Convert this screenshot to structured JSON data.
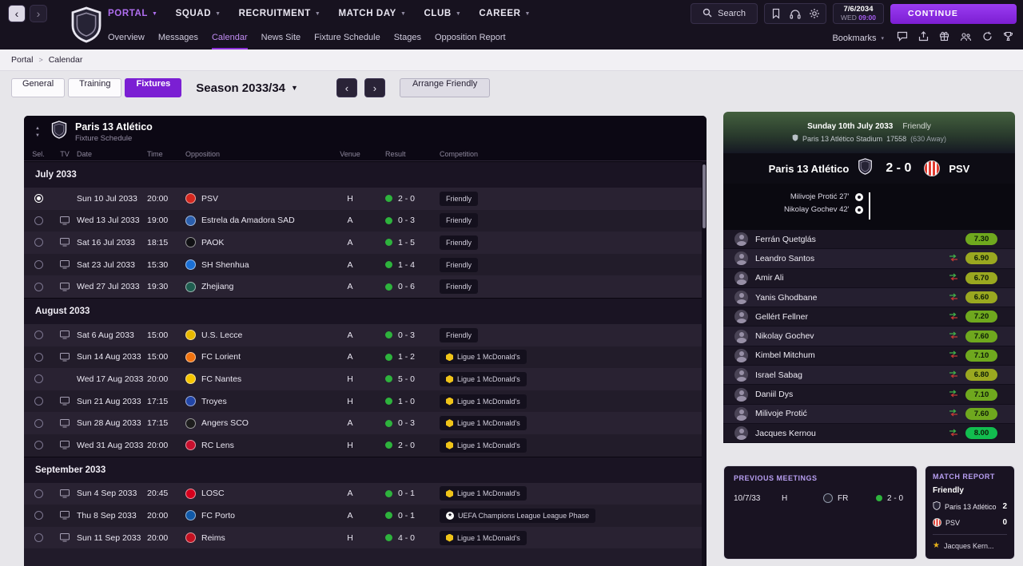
{
  "top_nav": {
    "menus": [
      {
        "label": "PORTAL",
        "active": true
      },
      {
        "label": "SQUAD",
        "active": false
      },
      {
        "label": "RECRUITMENT",
        "active": false
      },
      {
        "label": "MATCH DAY",
        "active": false
      },
      {
        "label": "CLUB",
        "active": false
      },
      {
        "label": "CAREER",
        "active": false
      }
    ],
    "search_label": "Search",
    "date": "7/6/2034",
    "weekday": "WED",
    "time": "09:00",
    "continue_label": "CONTINUE"
  },
  "sub_nav": {
    "items": [
      {
        "label": "Overview",
        "active": false
      },
      {
        "label": "Messages",
        "active": false
      },
      {
        "label": "Calendar",
        "active": true
      },
      {
        "label": "News Site",
        "active": false
      },
      {
        "label": "Fixture Schedule",
        "active": false
      },
      {
        "label": "Stages",
        "active": false
      },
      {
        "label": "Opposition Report",
        "active": false
      }
    ],
    "bookmarks_label": "Bookmarks"
  },
  "breadcrumb": {
    "home": "Portal",
    "separator": ">",
    "current": "Calendar"
  },
  "toolbar": {
    "tabs": [
      {
        "label": "General",
        "active": false
      },
      {
        "label": "Training",
        "active": false
      },
      {
        "label": "Fixtures",
        "active": true
      }
    ],
    "season_label": "Season 2033/34",
    "arrange_friendly_label": "Arrange Friendly"
  },
  "fixture_table": {
    "club_name": "Paris 13 Atlético",
    "subtitle": "Fixture Schedule",
    "columns": [
      "Sel.",
      "TV",
      "Date",
      "Time",
      "Opposition",
      "Venue",
      "Result",
      "Competition"
    ],
    "groups": [
      {
        "month": "July 2033",
        "rows": [
          {
            "sel": true,
            "tv": false,
            "date": "Sun 10 Jul 2033",
            "time": "20:00",
            "opposition": "PSV",
            "badge": "#d5281f",
            "venue": "H",
            "result": "2 - 0",
            "competition": "Friendly",
            "comp_icon": "none"
          },
          {
            "sel": false,
            "tv": true,
            "date": "Wed 13 Jul 2033",
            "time": "19:00",
            "opposition": "Estrela da Amadora SAD",
            "badge": "#2b5fad",
            "venue": "A",
            "result": "0 - 3",
            "competition": "Friendly",
            "comp_icon": "none"
          },
          {
            "sel": false,
            "tv": true,
            "date": "Sat 16 Jul 2033",
            "time": "18:15",
            "opposition": "PAOK",
            "badge": "#101013",
            "venue": "A",
            "result": "1 - 5",
            "competition": "Friendly",
            "comp_icon": "none"
          },
          {
            "sel": false,
            "tv": true,
            "date": "Sat 23 Jul 2033",
            "time": "15:30",
            "opposition": "SH Shenhua",
            "badge": "#1a6fd4",
            "venue": "A",
            "result": "1 - 4",
            "competition": "Friendly",
            "comp_icon": "none"
          },
          {
            "sel": false,
            "tv": true,
            "date": "Wed 27 Jul 2033",
            "time": "19:30",
            "opposition": "Zhejiang",
            "badge": "#1f5e50",
            "venue": "A",
            "result": "0 - 6",
            "competition": "Friendly",
            "comp_icon": "none"
          }
        ]
      },
      {
        "month": "August 2033",
        "rows": [
          {
            "sel": false,
            "tv": true,
            "date": "Sat 6 Aug 2033",
            "time": "15:00",
            "opposition": "U.S. Lecce",
            "badge": "#e8b800",
            "venue": "A",
            "result": "0 - 3",
            "competition": "Friendly",
            "comp_icon": "none"
          },
          {
            "sel": false,
            "tv": true,
            "date": "Sun 14 Aug 2033",
            "time": "15:00",
            "opposition": "FC Lorient",
            "badge": "#f1730f",
            "venue": "A",
            "result": "1 - 2",
            "competition": "Ligue 1 McDonald's",
            "comp_icon": "ligue1"
          },
          {
            "sel": false,
            "tv": false,
            "date": "Wed 17 Aug 2033",
            "time": "20:00",
            "opposition": "FC Nantes",
            "badge": "#f7c500",
            "venue": "H",
            "result": "5 - 0",
            "competition": "Ligue 1 McDonald's",
            "comp_icon": "ligue1"
          },
          {
            "sel": false,
            "tv": true,
            "date": "Sun 21 Aug 2033",
            "time": "17:15",
            "opposition": "Troyes",
            "badge": "#2246a8",
            "venue": "H",
            "result": "1 - 0",
            "competition": "Ligue 1 McDonald's",
            "comp_icon": "ligue1"
          },
          {
            "sel": false,
            "tv": true,
            "date": "Sun 28 Aug 2033",
            "time": "17:15",
            "opposition": "Angers SCO",
            "badge": "#1d1d1d",
            "venue": "A",
            "result": "0 - 3",
            "competition": "Ligue 1 McDonald's",
            "comp_icon": "ligue1"
          },
          {
            "sel": false,
            "tv": true,
            "date": "Wed 31 Aug 2033",
            "time": "20:00",
            "opposition": "RC Lens",
            "badge": "#c8102e",
            "venue": "H",
            "result": "2 - 0",
            "competition": "Ligue 1 McDonald's",
            "comp_icon": "ligue1"
          }
        ]
      },
      {
        "month": "September 2033",
        "rows": [
          {
            "sel": false,
            "tv": true,
            "date": "Sun 4 Sep 2033",
            "time": "20:45",
            "opposition": "LOSC",
            "badge": "#d6001c",
            "venue": "A",
            "result": "0 - 1",
            "competition": "Ligue 1 McDonald's",
            "comp_icon": "ligue1"
          },
          {
            "sel": false,
            "tv": true,
            "date": "Thu 8 Sep 2033",
            "time": "20:00",
            "opposition": "FC Porto",
            "badge": "#1059a8",
            "venue": "A",
            "result": "0 - 1",
            "competition": "UEFA Champions League League Phase",
            "comp_icon": "ucl"
          },
          {
            "sel": false,
            "tv": true,
            "date": "Sun 11 Sep 2033",
            "time": "20:00",
            "opposition": "Reims",
            "badge": "#c31121",
            "venue": "H",
            "result": "4 - 0",
            "competition": "Ligue 1 McDonald's",
            "comp_icon": "ligue1"
          }
        ]
      }
    ]
  },
  "match_panel": {
    "date_line": "Sunday 10th July 2033",
    "competition": "Friendly",
    "stadium": "Paris 13 Atlético Stadium",
    "attendance": "17558",
    "away_attendance": "(630 Away)",
    "home_team": "Paris 13 Atlético",
    "score": "2 - 0",
    "away_team": "PSV",
    "scorers": [
      {
        "name": "Milivoje Protić",
        "minute": "27'"
      },
      {
        "name": "Nikolay Gochev",
        "minute": "42'"
      }
    ],
    "ratings": [
      {
        "name": "Ferrán Quetglás",
        "rating": "7.30",
        "color": "#6fa81e",
        "subbed": false
      },
      {
        "name": "Leandro Santos",
        "rating": "6.90",
        "color": "#9aa820",
        "subbed": true
      },
      {
        "name": "Amir Ali",
        "rating": "6.70",
        "color": "#9aa820",
        "subbed": true
      },
      {
        "name": "Yanis Ghodbane",
        "rating": "6.60",
        "color": "#9aa820",
        "subbed": true
      },
      {
        "name": "Gellért Fellner",
        "rating": "7.20",
        "color": "#6fa81e",
        "subbed": true
      },
      {
        "name": "Nikolay Gochev",
        "rating": "7.60",
        "color": "#6fa81e",
        "subbed": true
      },
      {
        "name": "Kimbel Mitchum",
        "rating": "7.10",
        "color": "#6fa81e",
        "subbed": true
      },
      {
        "name": "Israel Sabag",
        "rating": "6.80",
        "color": "#9aa820",
        "subbed": true
      },
      {
        "name": "Daniil Dys",
        "rating": "7.10",
        "color": "#6fa81e",
        "subbed": true
      },
      {
        "name": "Milivoje Protić",
        "rating": "7.60",
        "color": "#6fa81e",
        "subbed": true
      },
      {
        "name": "Jacques Kernou",
        "rating": "8.00",
        "color": "#12bd4f",
        "subbed": true
      }
    ]
  },
  "previous_meetings": {
    "title": "PREVIOUS MEETINGS",
    "rows": [
      {
        "date": "10/7/33",
        "venue": "H",
        "competition": "FR",
        "result": "2 - 0"
      }
    ]
  },
  "match_report": {
    "title": "MATCH REPORT",
    "competition": "Friendly",
    "home_team": "Paris 13 Atlético",
    "home_score": "2",
    "away_team": "PSV",
    "away_score": "0",
    "motm": "Jacques Kern..."
  }
}
